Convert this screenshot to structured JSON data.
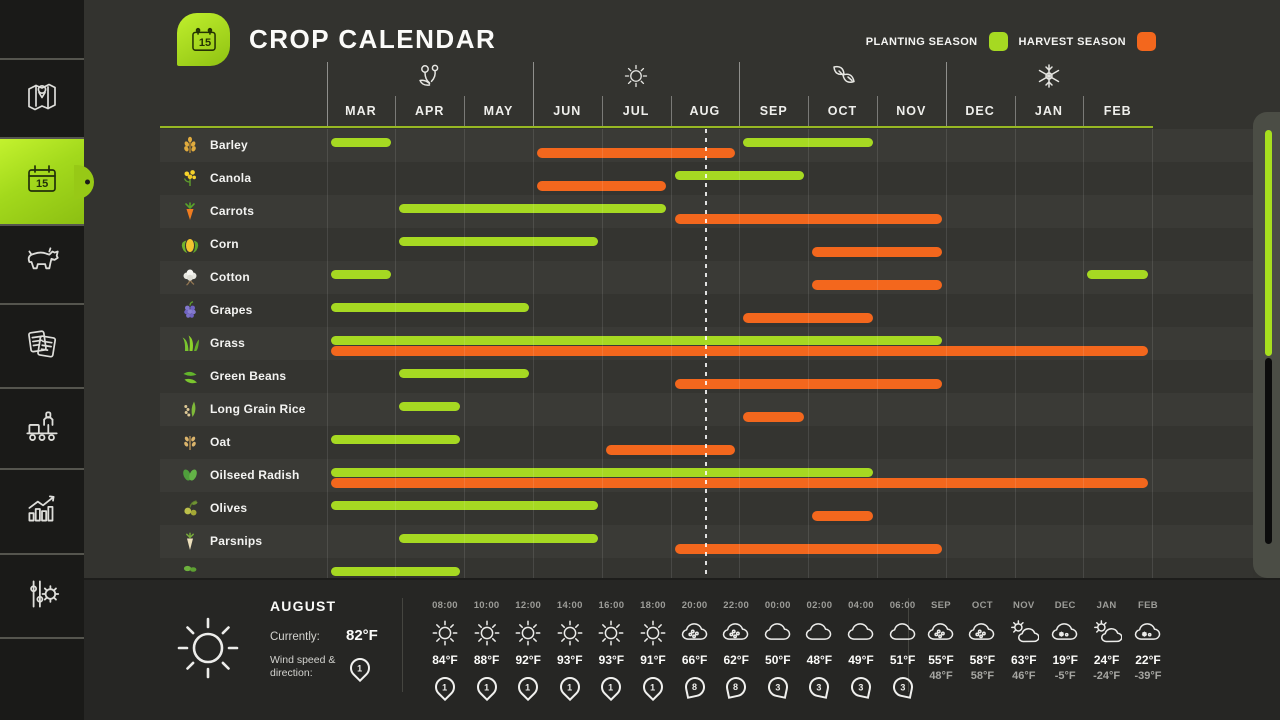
{
  "header": {
    "title": "CROP CALENDAR"
  },
  "legend": {
    "planting_label": "PLANTING SEASON",
    "harvest_label": "HARVEST SEASON",
    "planting_color": "#a6d922",
    "harvest_color": "#f3671d"
  },
  "sidebar": {
    "items": [
      {
        "icon": "map"
      },
      {
        "icon": "calendar",
        "selected": true
      },
      {
        "icon": "animals"
      },
      {
        "icon": "contracts"
      },
      {
        "icon": "production"
      },
      {
        "icon": "statistics"
      },
      {
        "icon": "settings"
      }
    ]
  },
  "chart_data": {
    "type": "gantt-calendar",
    "months": [
      "MAR",
      "APR",
      "MAY",
      "JUN",
      "JUL",
      "AUG",
      "SEP",
      "OCT",
      "NOV",
      "DEC",
      "JAN",
      "FEB"
    ],
    "seasons": [
      {
        "name": "spring",
        "icon": "flowers",
        "center_month_index": 1
      },
      {
        "name": "summer",
        "icon": "sun",
        "center_month_index": 4
      },
      {
        "name": "autumn",
        "icon": "leaves",
        "center_month_index": 7
      },
      {
        "name": "winter",
        "icon": "snowflake",
        "center_month_index": 10
      }
    ],
    "current_date_marker_month_offset": 5.5,
    "crops": [
      {
        "name": "Barley",
        "icon": "barley",
        "planting": [
          [
            0,
            0
          ],
          [
            6,
            7
          ]
        ],
        "harvest": [
          [
            3,
            5
          ]
        ]
      },
      {
        "name": "Canola",
        "icon": "canola",
        "planting": [
          [
            5,
            6
          ]
        ],
        "harvest": [
          [
            3,
            4
          ]
        ]
      },
      {
        "name": "Carrots",
        "icon": "carrots",
        "planting": [
          [
            1,
            4
          ]
        ],
        "harvest": [
          [
            5,
            8
          ]
        ]
      },
      {
        "name": "Corn",
        "icon": "corn",
        "planting": [
          [
            1,
            3
          ]
        ],
        "harvest": [
          [
            7,
            8
          ]
        ]
      },
      {
        "name": "Cotton",
        "icon": "cotton",
        "planting": [
          [
            0,
            0
          ],
          [
            11,
            11
          ]
        ],
        "harvest": [
          [
            7,
            8
          ]
        ]
      },
      {
        "name": "Grapes",
        "icon": "grapes",
        "planting": [
          [
            0,
            2
          ]
        ],
        "harvest": [
          [
            6,
            7
          ]
        ]
      },
      {
        "name": "Grass",
        "icon": "grass",
        "planting": [
          [
            0,
            8
          ]
        ],
        "harvest": [
          [
            0,
            11
          ]
        ]
      },
      {
        "name": "Green Beans",
        "icon": "greenbeans",
        "planting": [
          [
            1,
            2
          ]
        ],
        "harvest": [
          [
            5,
            8
          ]
        ]
      },
      {
        "name": "Long Grain Rice",
        "icon": "rice",
        "planting": [
          [
            1,
            1
          ]
        ],
        "harvest": [
          [
            6,
            6
          ]
        ]
      },
      {
        "name": "Oat",
        "icon": "oat",
        "planting": [
          [
            0,
            1
          ]
        ],
        "harvest": [
          [
            4,
            5
          ]
        ]
      },
      {
        "name": "Oilseed Radish",
        "icon": "oilseedradish",
        "planting": [
          [
            0,
            7
          ]
        ],
        "harvest": [
          [
            0,
            11
          ]
        ]
      },
      {
        "name": "Olives",
        "icon": "olives",
        "planting": [
          [
            0,
            3
          ]
        ],
        "harvest": [
          [
            7,
            7
          ]
        ]
      },
      {
        "name": "Parsnips",
        "icon": "parsnips",
        "planting": [
          [
            1,
            3
          ]
        ],
        "harvest": [
          [
            5,
            8
          ]
        ]
      },
      {
        "name": "",
        "icon": "sprout",
        "planting": [
          [
            0,
            1
          ]
        ],
        "harvest": []
      }
    ]
  },
  "weather": {
    "current": {
      "month": "AUGUST",
      "currently_label": "Currently:",
      "temp": "82°F",
      "wind_label": "Wind speed & direction:",
      "wind": "1",
      "wind_dir": "s",
      "icon": "sun"
    },
    "hourly": [
      {
        "time": "08:00",
        "icon": "sun",
        "temp": "84°F",
        "wind": "1",
        "dir": "s"
      },
      {
        "time": "10:00",
        "icon": "sun",
        "temp": "88°F",
        "wind": "1",
        "dir": "s"
      },
      {
        "time": "12:00",
        "icon": "sun",
        "temp": "92°F",
        "wind": "1",
        "dir": "s"
      },
      {
        "time": "14:00",
        "icon": "sun",
        "temp": "93°F",
        "wind": "1",
        "dir": "s"
      },
      {
        "time": "16:00",
        "icon": "sun",
        "temp": "93°F",
        "wind": "1",
        "dir": "s"
      },
      {
        "time": "18:00",
        "icon": "sun",
        "temp": "91°F",
        "wind": "1",
        "dir": "s"
      },
      {
        "time": "20:00",
        "icon": "rain",
        "temp": "66°F",
        "wind": "8",
        "dir": "sw"
      },
      {
        "time": "22:00",
        "icon": "rain",
        "temp": "62°F",
        "wind": "8",
        "dir": "sw"
      },
      {
        "time": "00:00",
        "icon": "cloud",
        "temp": "50°F",
        "wind": "3",
        "dir": "se"
      },
      {
        "time": "02:00",
        "icon": "cloud",
        "temp": "48°F",
        "wind": "3",
        "dir": "se"
      },
      {
        "time": "04:00",
        "icon": "cloud",
        "temp": "49°F",
        "wind": "3",
        "dir": "se"
      },
      {
        "time": "06:00",
        "icon": "cloud",
        "temp": "51°F",
        "wind": "3",
        "dir": "se"
      }
    ],
    "monthly": [
      {
        "month": "SEP",
        "icon": "rain",
        "high": "55°F",
        "low": "48°F"
      },
      {
        "month": "OCT",
        "icon": "rain",
        "high": "58°F",
        "low": "58°F"
      },
      {
        "month": "NOV",
        "icon": "partly",
        "high": "63°F",
        "low": "46°F"
      },
      {
        "month": "DEC",
        "icon": "snow",
        "high": "19°F",
        "low": "-5°F"
      },
      {
        "month": "JAN",
        "icon": "partly",
        "high": "24°F",
        "low": "-24°F"
      },
      {
        "month": "FEB",
        "icon": "snow",
        "high": "22°F",
        "low": "-39°F"
      }
    ]
  }
}
